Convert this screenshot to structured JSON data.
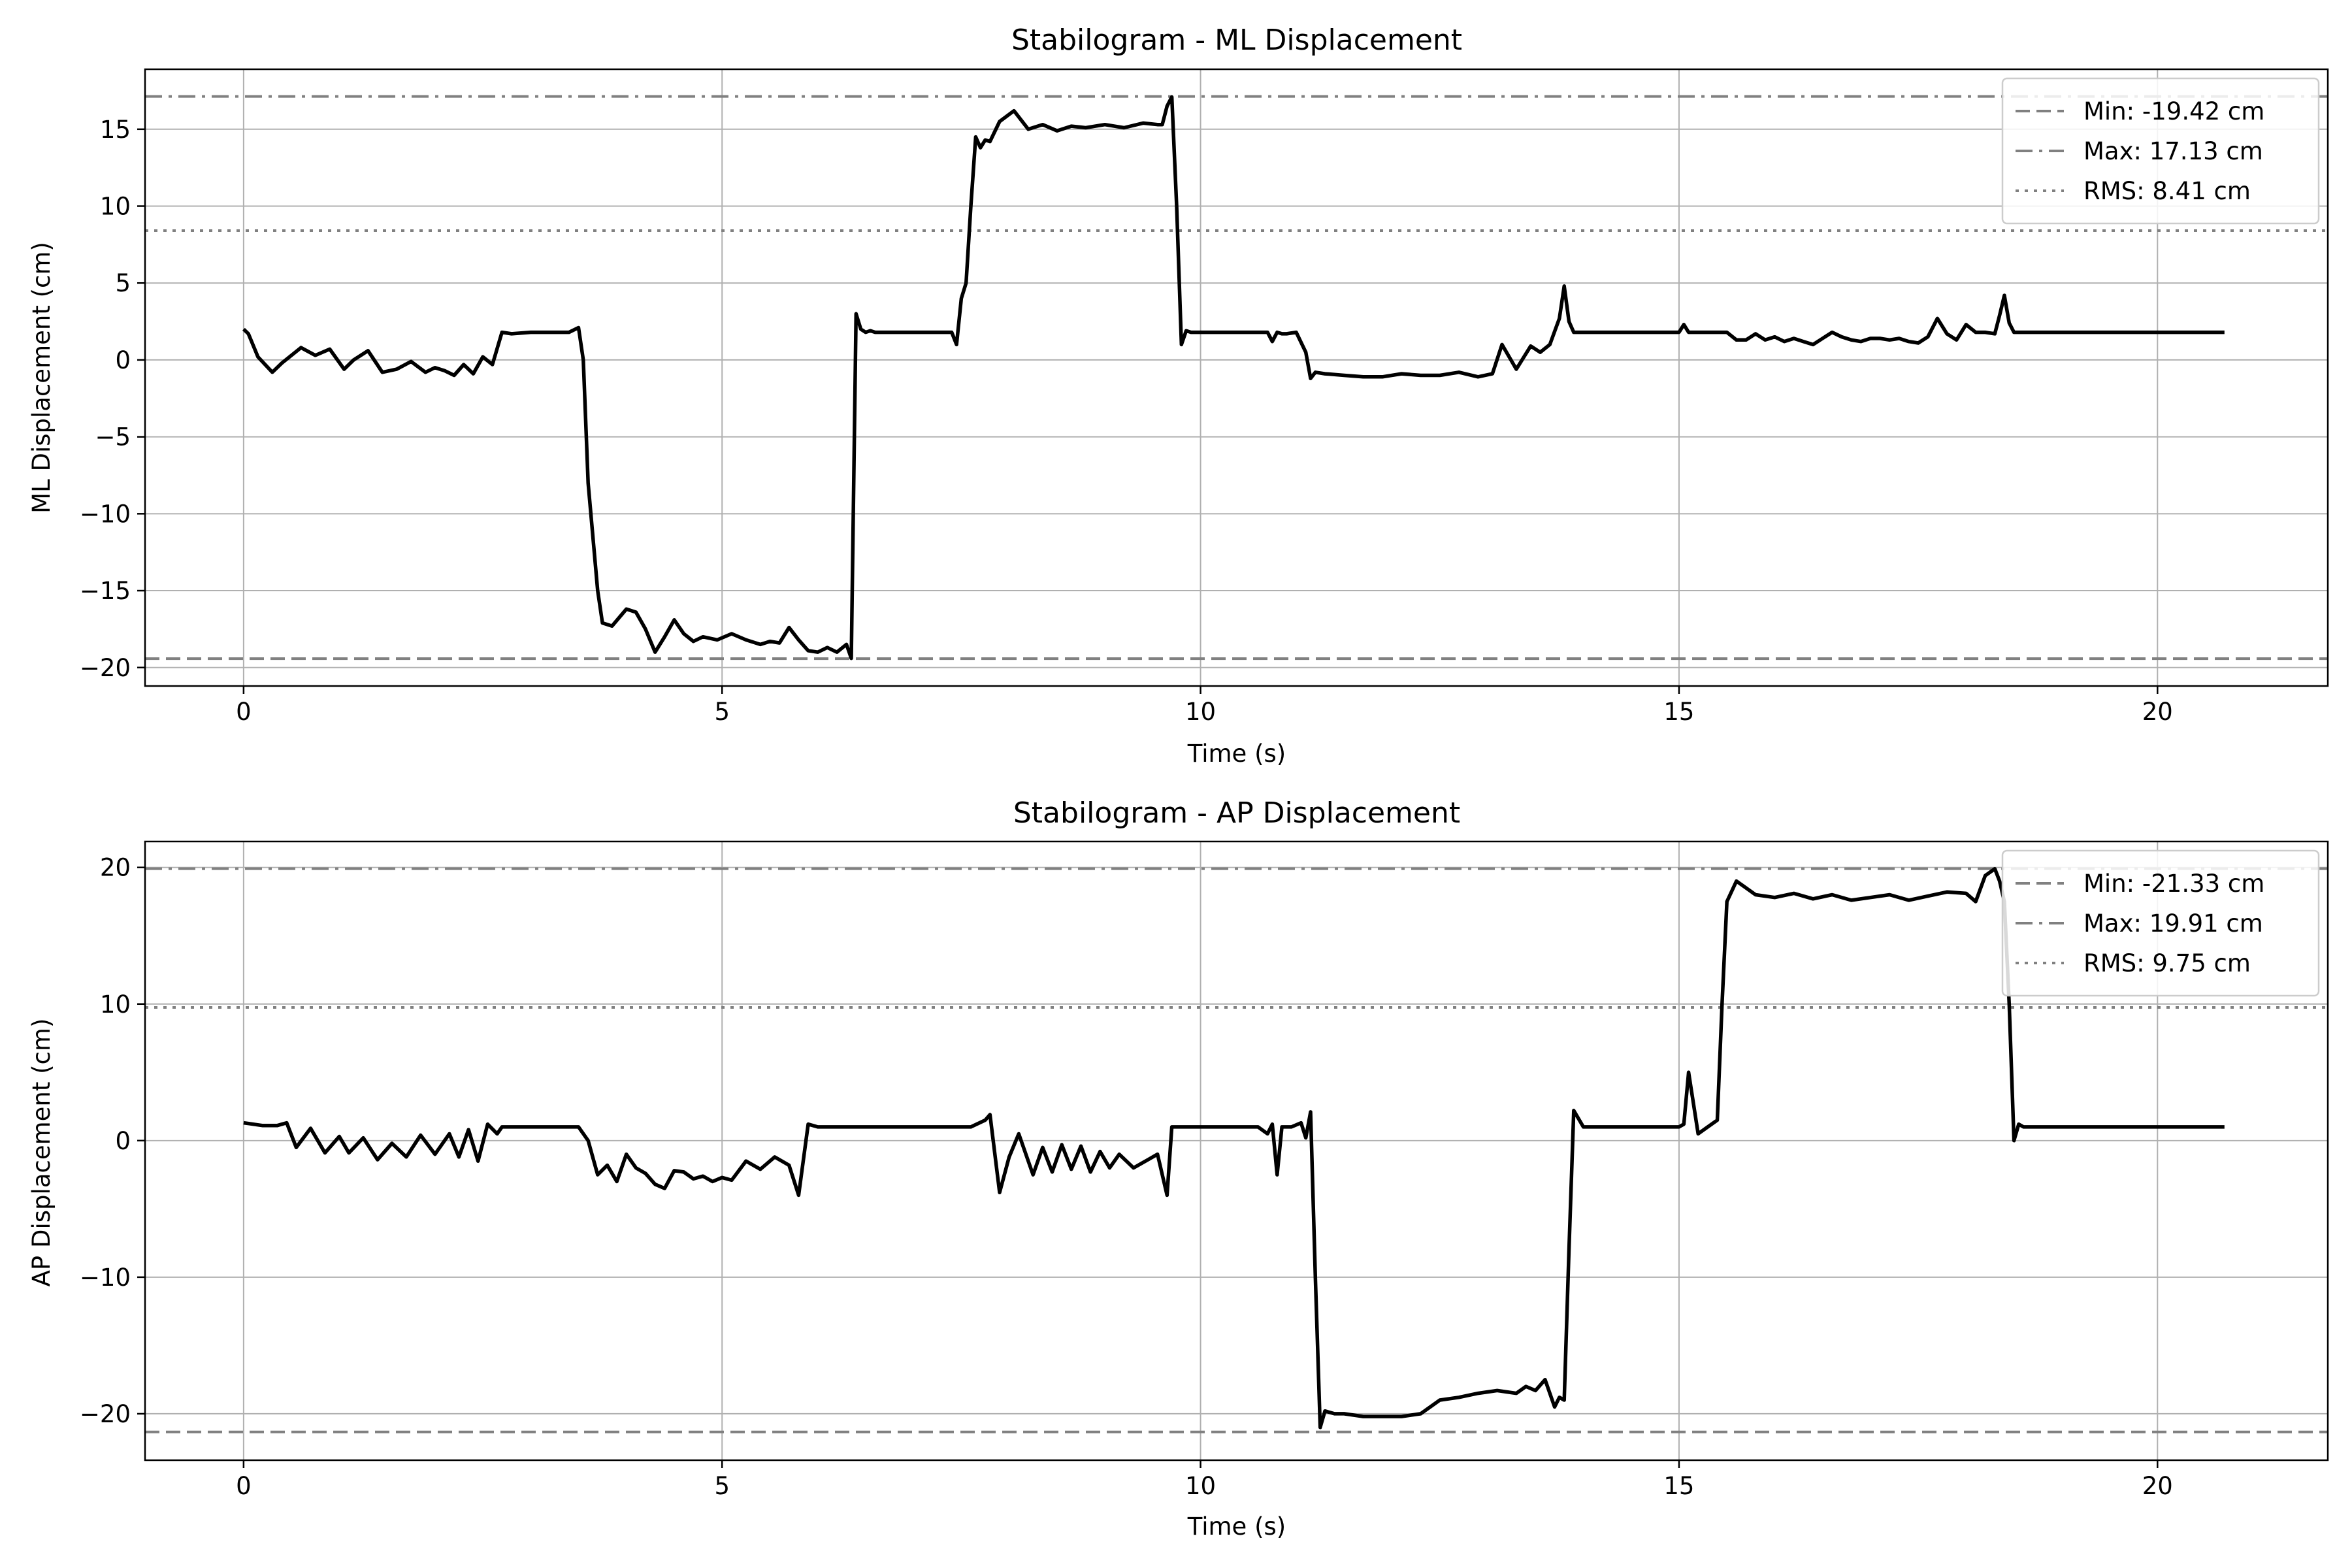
{
  "chart_data": [
    {
      "type": "line",
      "title": "Stabilogram - ML Displacement",
      "xlabel": "Time (s)",
      "ylabel": "ML Displacement (cm)",
      "xlim": [
        -1.03,
        21.78
      ],
      "ylim": [
        -21.2,
        18.9
      ],
      "xticks": [
        0,
        5,
        10,
        15,
        20
      ],
      "xtick_labels": [
        "0",
        "5",
        "10",
        "15",
        "20"
      ],
      "yticks": [
        -20,
        -15,
        -10,
        -5,
        0,
        5,
        10,
        15
      ],
      "ytick_labels": [
        "−20",
        "−15",
        "−10",
        "−5",
        "0",
        "5",
        "10",
        "15"
      ],
      "grid": true,
      "legend_position": "top-right",
      "series": [
        {
          "color": "#000000",
          "x": [
            0,
            0.05,
            0.15,
            0.3,
            0.4,
            0.6,
            0.75,
            0.9,
            1.05,
            1.15,
            1.3,
            1.45,
            1.6,
            1.75,
            1.9,
            2.0,
            2.1,
            2.2,
            2.3,
            2.4,
            2.5,
            2.6,
            2.7,
            2.8,
            3.0,
            3.2,
            3.4,
            3.5,
            3.55,
            3.6,
            3.7,
            3.75,
            3.85,
            4.0,
            4.1,
            4.2,
            4.3,
            4.4,
            4.5,
            4.6,
            4.7,
            4.8,
            4.95,
            5.1,
            5.25,
            5.4,
            5.5,
            5.6,
            5.7,
            5.8,
            5.9,
            6.0,
            6.1,
            6.2,
            6.3,
            6.35,
            6.4,
            6.45,
            6.5,
            6.55,
            6.6,
            6.7,
            6.8,
            7.0,
            7.2,
            7.4,
            7.45,
            7.5,
            7.55,
            7.6,
            7.65,
            7.7,
            7.75,
            7.8,
            7.9,
            8.05,
            8.2,
            8.35,
            8.5,
            8.65,
            8.8,
            9.0,
            9.2,
            9.4,
            9.55,
            9.6,
            9.65,
            9.7,
            9.75,
            9.8,
            9.85,
            9.9,
            10.0,
            10.2,
            10.5,
            10.7,
            10.75,
            10.8,
            10.85,
            10.9,
            11.0,
            11.1,
            11.15,
            11.2,
            11.3,
            11.5,
            11.7,
            11.9,
            12.1,
            12.3,
            12.5,
            12.7,
            12.9,
            13.05,
            13.15,
            13.3,
            13.45,
            13.55,
            13.65,
            13.75,
            13.8,
            13.85,
            13.9,
            14.0,
            14.5,
            15.0,
            15.05,
            15.1,
            15.2,
            15.5,
            15.6,
            15.7,
            15.8,
            15.9,
            16.0,
            16.1,
            16.2,
            16.3,
            16.4,
            16.5,
            16.6,
            16.7,
            16.8,
            16.9,
            17.0,
            17.1,
            17.2,
            17.3,
            17.4,
            17.5,
            17.6,
            17.7,
            17.8,
            17.9,
            18.0,
            18.1,
            18.2,
            18.3,
            18.35,
            18.4,
            18.45,
            18.5,
            18.6,
            19.0,
            19.5,
            20.0,
            20.5,
            20.7
          ],
          "y": [
            2.0,
            1.7,
            0.2,
            -0.8,
            -0.2,
            0.8,
            0.3,
            0.7,
            -0.6,
            0.0,
            0.6,
            -0.8,
            -0.6,
            -0.1,
            -0.8,
            -0.5,
            -0.7,
            -1.0,
            -0.3,
            -0.9,
            0.2,
            -0.3,
            1.8,
            1.7,
            1.8,
            1.8,
            1.8,
            2.1,
            0.0,
            -8.0,
            -15.0,
            -17.1,
            -17.3,
            -16.2,
            -16.4,
            -17.5,
            -19.0,
            -18.0,
            -16.9,
            -17.8,
            -18.3,
            -18.0,
            -18.2,
            -17.8,
            -18.2,
            -18.5,
            -18.3,
            -18.4,
            -17.4,
            -18.2,
            -18.9,
            -19.0,
            -18.7,
            -19.0,
            -18.5,
            -19.4,
            3.0,
            2.0,
            1.8,
            1.9,
            1.8,
            1.8,
            1.8,
            1.8,
            1.8,
            1.8,
            1.0,
            4.0,
            5.0,
            10.0,
            14.5,
            13.8,
            14.3,
            14.2,
            15.5,
            16.2,
            15.0,
            15.3,
            14.9,
            15.2,
            15.1,
            15.3,
            15.1,
            15.4,
            15.3,
            15.3,
            16.5,
            17.1,
            10.0,
            1.0,
            1.9,
            1.8,
            1.8,
            1.8,
            1.8,
            1.8,
            1.2,
            1.8,
            1.7,
            1.7,
            1.8,
            0.5,
            -1.2,
            -0.8,
            -0.9,
            -1.0,
            -1.1,
            -1.1,
            -0.9,
            -1.0,
            -1.0,
            -0.8,
            -1.1,
            -0.9,
            1.0,
            -0.6,
            0.9,
            0.5,
            1.0,
            2.7,
            4.8,
            2.5,
            1.8,
            1.8,
            1.8,
            1.8,
            2.3,
            1.8,
            1.8,
            1.8,
            1.3,
            1.3,
            1.7,
            1.3,
            1.5,
            1.2,
            1.4,
            1.2,
            1.0,
            1.4,
            1.8,
            1.5,
            1.3,
            1.2,
            1.4,
            1.4,
            1.3,
            1.4,
            1.2,
            1.1,
            1.5,
            2.7,
            1.7,
            1.3,
            2.3,
            1.8,
            1.8,
            1.7,
            2.9,
            4.2,
            2.4,
            1.8,
            1.8,
            1.8,
            1.8,
            1.8,
            1.8,
            1.8
          ]
        }
      ],
      "reference_lines": [
        {
          "label": "Min: -19.42 cm",
          "value": -19.42,
          "style": "dashed",
          "color": "#808080"
        },
        {
          "label": "Max: 17.13 cm",
          "value": 17.13,
          "style": "dashdot",
          "color": "#808080"
        },
        {
          "label": "RMS: 8.41 cm",
          "value": 8.41,
          "style": "dotted",
          "color": "#808080"
        }
      ]
    },
    {
      "type": "line",
      "title": "Stabilogram - AP Displacement",
      "xlabel": "Time (s)",
      "ylabel": "AP Displacement (cm)",
      "xlim": [
        -1.03,
        21.78
      ],
      "ylim": [
        -23.4,
        21.9
      ],
      "xticks": [
        0,
        5,
        10,
        15,
        20
      ],
      "xtick_labels": [
        "0",
        "5",
        "10",
        "15",
        "20"
      ],
      "yticks": [
        -20,
        -10,
        0,
        10,
        20
      ],
      "ytick_labels": [
        "−20",
        "−10",
        "0",
        "10",
        "20"
      ],
      "grid": true,
      "legend_position": "top-right",
      "series": [
        {
          "color": "#000000",
          "x": [
            0,
            0.2,
            0.35,
            0.45,
            0.55,
            0.7,
            0.85,
            1.0,
            1.1,
            1.25,
            1.4,
            1.55,
            1.7,
            1.85,
            2.0,
            2.15,
            2.25,
            2.35,
            2.45,
            2.55,
            2.65,
            2.7,
            2.8,
            3.0,
            3.3,
            3.5,
            3.6,
            3.7,
            3.8,
            3.9,
            4.0,
            4.1,
            4.2,
            4.3,
            4.4,
            4.5,
            4.6,
            4.7,
            4.8,
            4.9,
            5.0,
            5.1,
            5.25,
            5.4,
            5.55,
            5.7,
            5.8,
            5.9,
            6.0,
            6.1,
            6.2,
            6.3,
            6.35,
            6.4,
            6.45,
            6.5,
            6.6,
            6.8,
            7.0,
            7.4,
            7.6,
            7.75,
            7.8,
            7.9,
            8.0,
            8.1,
            8.25,
            8.35,
            8.45,
            8.55,
            8.65,
            8.75,
            8.85,
            8.95,
            9.05,
            9.15,
            9.3,
            9.45,
            9.55,
            9.65,
            9.7,
            9.75,
            9.8,
            10.0,
            10.3,
            10.6,
            10.7,
            10.75,
            10.8,
            10.85,
            10.95,
            11.05,
            11.1,
            11.15,
            11.2,
            11.25,
            11.3,
            11.4,
            11.5,
            11.7,
            11.9,
            12.1,
            12.3,
            12.5,
            12.7,
            12.9,
            13.1,
            13.3,
            13.4,
            13.5,
            13.6,
            13.7,
            13.75,
            13.8,
            13.85,
            13.9,
            14.0,
            14.5,
            14.9,
            15.0,
            15.05,
            15.1,
            15.2,
            15.3,
            15.4,
            15.45,
            15.5,
            15.6,
            15.8,
            16.0,
            16.2,
            16.4,
            16.6,
            16.8,
            17.0,
            17.2,
            17.4,
            17.6,
            17.8,
            18.0,
            18.1,
            18.2,
            18.3,
            18.35,
            18.4,
            18.45,
            18.5,
            18.55,
            18.6,
            19.0,
            19.5,
            20.0,
            20.5,
            20.7
          ],
          "y": [
            1.3,
            1.1,
            1.1,
            1.3,
            -0.5,
            0.9,
            -0.9,
            0.3,
            -0.9,
            0.2,
            -1.4,
            -0.2,
            -1.2,
            0.4,
            -1.0,
            0.5,
            -1.2,
            0.8,
            -1.5,
            1.2,
            0.5,
            1.0,
            1.0,
            1.0,
            1.0,
            1.0,
            0.0,
            -2.5,
            -1.8,
            -3.0,
            -1.0,
            -2.0,
            -2.4,
            -3.2,
            -3.5,
            -2.2,
            -2.3,
            -2.8,
            -2.6,
            -3.0,
            -2.7,
            -2.9,
            -1.5,
            -2.1,
            -1.2,
            -1.8,
            -4.0,
            1.2,
            1.0,
            1.0,
            1.0,
            1.0,
            1.0,
            1.0,
            1.0,
            1.0,
            1.0,
            1.0,
            1.0,
            1.0,
            1.0,
            1.5,
            1.9,
            -3.8,
            -1.2,
            0.5,
            -2.5,
            -0.5,
            -2.3,
            -0.3,
            -2.1,
            -0.4,
            -2.3,
            -0.8,
            -2.0,
            -1.0,
            -2.0,
            -1.4,
            -1.0,
            -4.0,
            1.0,
            1.0,
            1.0,
            1.0,
            1.0,
            1.0,
            0.5,
            1.2,
            -2.5,
            1.0,
            1.0,
            1.3,
            0.2,
            2.1,
            -10.0,
            -21.0,
            -19.8,
            -20.0,
            -20.0,
            -20.2,
            -20.2,
            -20.2,
            -20.0,
            -19.0,
            -18.8,
            -18.5,
            -18.3,
            -18.5,
            -18.0,
            -18.3,
            -17.5,
            -19.5,
            -18.8,
            -19.0,
            -8.0,
            2.2,
            1.0,
            1.0,
            1.0,
            1.0,
            1.2,
            5.0,
            0.5,
            1.0,
            1.5,
            10.0,
            17.5,
            19.0,
            18.0,
            17.8,
            18.1,
            17.7,
            18.0,
            17.6,
            17.8,
            18.0,
            17.6,
            17.9,
            18.2,
            18.1,
            17.5,
            19.4,
            19.9,
            19.0,
            17.5,
            10.0,
            0.0,
            1.2,
            1.0,
            1.0,
            1.0,
            1.0,
            1.0,
            1.0
          ]
        }
      ],
      "reference_lines": [
        {
          "label": "Min: -21.33 cm",
          "value": -21.33,
          "style": "dashed",
          "color": "#808080"
        },
        {
          "label": "Max: 19.91 cm",
          "value": 19.91,
          "style": "dashdot",
          "color": "#808080"
        },
        {
          "label": "RMS: 9.75 cm",
          "value": 9.75,
          "style": "dotted",
          "color": "#808080"
        }
      ]
    }
  ]
}
